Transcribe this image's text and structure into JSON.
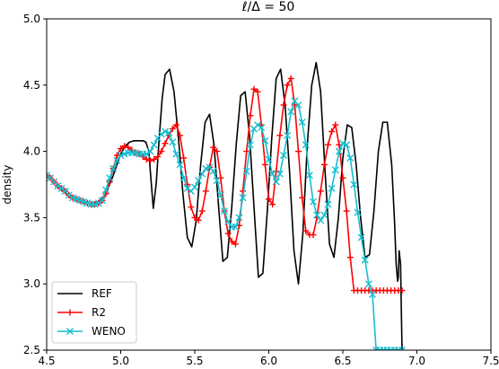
{
  "chart_data": {
    "type": "line",
    "title": "ℓ/Δ = 50",
    "xlabel": "",
    "ylabel": "density",
    "xlim": [
      4.5,
      7.5
    ],
    "ylim": [
      2.5,
      5.0
    ],
    "xticks": [
      "4.5",
      "5.0",
      "5.5",
      "6.0",
      "6.5",
      "7.0",
      "7.5"
    ],
    "yticks": [
      "2.5",
      "3.0",
      "3.5",
      "4.0",
      "4.5",
      "5.0"
    ],
    "grid": false,
    "legend_position": "lower-left",
    "series": [
      {
        "name": "REF",
        "color": "#000000",
        "marker": "none",
        "x": [
          4.5,
          4.55,
          4.6,
          4.65,
          4.7,
          4.75,
          4.8,
          4.85,
          4.9,
          4.95,
          5.0,
          5.03,
          5.06,
          5.09,
          5.12,
          5.15,
          5.17,
          5.19,
          5.2,
          5.22,
          5.24,
          5.26,
          5.28,
          5.3,
          5.33,
          5.36,
          5.39,
          5.42,
          5.45,
          5.48,
          5.51,
          5.54,
          5.57,
          5.6,
          5.63,
          5.66,
          5.69,
          5.72,
          5.75,
          5.78,
          5.81,
          5.84,
          5.87,
          5.9,
          5.93,
          5.96,
          5.99,
          6.02,
          6.05,
          6.08,
          6.11,
          6.14,
          6.17,
          6.2,
          6.23,
          6.26,
          6.29,
          6.32,
          6.35,
          6.38,
          6.41,
          6.44,
          6.47,
          6.5,
          6.53,
          6.56,
          6.59,
          6.62,
          6.65,
          6.68,
          6.71,
          6.74,
          6.77,
          6.8,
          6.83,
          6.85,
          6.86,
          6.87,
          6.875,
          6.88,
          6.89,
          6.895,
          6.9,
          6.9
        ],
        "y": [
          3.82,
          3.77,
          3.71,
          3.67,
          3.63,
          3.61,
          3.6,
          3.62,
          3.68,
          3.82,
          3.98,
          4.04,
          4.07,
          4.08,
          4.08,
          4.08,
          4.07,
          4.0,
          3.85,
          3.57,
          3.76,
          4.1,
          4.4,
          4.58,
          4.62,
          4.45,
          4.1,
          3.68,
          3.35,
          3.28,
          3.48,
          3.9,
          4.22,
          4.28,
          4.05,
          3.6,
          3.17,
          3.2,
          3.58,
          4.05,
          4.42,
          4.45,
          4.12,
          3.58,
          3.05,
          3.08,
          3.55,
          4.1,
          4.55,
          4.62,
          4.35,
          3.85,
          3.25,
          3.0,
          3.38,
          4.05,
          4.5,
          4.67,
          4.45,
          3.85,
          3.3,
          3.2,
          3.5,
          3.95,
          4.2,
          4.18,
          3.9,
          3.5,
          3.2,
          3.22,
          3.55,
          4.0,
          4.22,
          4.22,
          3.9,
          3.45,
          3.15,
          3.02,
          3.05,
          3.25,
          3.15,
          2.8,
          2.5,
          2.5
        ]
      },
      {
        "name": "R2",
        "color": "#ff0000",
        "marker": "+",
        "x": [
          4.5,
          4.525,
          4.55,
          4.575,
          4.6,
          4.625,
          4.65,
          4.675,
          4.7,
          4.725,
          4.75,
          4.775,
          4.8,
          4.825,
          4.85,
          4.875,
          4.9,
          4.925,
          4.95,
          4.975,
          5.0,
          5.025,
          5.05,
          5.075,
          5.1,
          5.125,
          5.15,
          5.175,
          5.2,
          5.225,
          5.25,
          5.275,
          5.3,
          5.325,
          5.35,
          5.375,
          5.4,
          5.425,
          5.45,
          5.475,
          5.5,
          5.525,
          5.55,
          5.575,
          5.6,
          5.625,
          5.65,
          5.675,
          5.7,
          5.725,
          5.75,
          5.775,
          5.8,
          5.825,
          5.85,
          5.875,
          5.9,
          5.925,
          5.95,
          5.975,
          6.0,
          6.025,
          6.05,
          6.075,
          6.1,
          6.125,
          6.15,
          6.175,
          6.2,
          6.225,
          6.25,
          6.275,
          6.3,
          6.325,
          6.35,
          6.375,
          6.4,
          6.425,
          6.45,
          6.475,
          6.5,
          6.525,
          6.55,
          6.575,
          6.6,
          6.625,
          6.65,
          6.675,
          6.7,
          6.725,
          6.75,
          6.775,
          6.8,
          6.825,
          6.85,
          6.875,
          6.9
        ],
        "y": [
          3.82,
          3.8,
          3.77,
          3.74,
          3.72,
          3.7,
          3.67,
          3.65,
          3.64,
          3.63,
          3.62,
          3.61,
          3.6,
          3.6,
          3.61,
          3.63,
          3.68,
          3.77,
          3.87,
          3.97,
          4.02,
          4.04,
          4.03,
          4.01,
          3.99,
          3.98,
          3.96,
          3.94,
          3.93,
          3.94,
          3.96,
          4.0,
          4.06,
          4.12,
          4.17,
          4.2,
          4.12,
          3.95,
          3.75,
          3.58,
          3.5,
          3.48,
          3.55,
          3.7,
          3.88,
          4.03,
          4.0,
          3.8,
          3.55,
          3.38,
          3.32,
          3.3,
          3.44,
          3.7,
          4.0,
          4.27,
          4.47,
          4.45,
          4.2,
          3.9,
          3.64,
          3.6,
          3.85,
          4.12,
          4.35,
          4.5,
          4.55,
          4.35,
          4.0,
          3.65,
          3.4,
          3.37,
          3.37,
          3.5,
          3.7,
          3.9,
          4.05,
          4.15,
          4.2,
          4.05,
          3.8,
          3.55,
          3.2,
          2.95,
          2.95,
          2.95,
          2.95,
          2.95,
          2.95,
          2.95,
          2.95,
          2.95,
          2.95,
          2.95,
          2.95,
          2.95,
          2.95
        ]
      },
      {
        "name": "WENO",
        "color": "#17becf",
        "marker": "x",
        "x": [
          4.5,
          4.525,
          4.55,
          4.575,
          4.6,
          4.625,
          4.65,
          4.675,
          4.7,
          4.725,
          4.75,
          4.775,
          4.8,
          4.825,
          4.85,
          4.875,
          4.9,
          4.925,
          4.95,
          4.975,
          5.0,
          5.025,
          5.05,
          5.075,
          5.1,
          5.125,
          5.15,
          5.175,
          5.2,
          5.225,
          5.25,
          5.275,
          5.3,
          5.325,
          5.35,
          5.375,
          5.4,
          5.425,
          5.45,
          5.475,
          5.5,
          5.525,
          5.55,
          5.575,
          5.6,
          5.625,
          5.65,
          5.675,
          5.7,
          5.725,
          5.75,
          5.775,
          5.8,
          5.825,
          5.85,
          5.875,
          5.9,
          5.925,
          5.95,
          5.975,
          6.0,
          6.025,
          6.05,
          6.075,
          6.1,
          6.125,
          6.15,
          6.175,
          6.2,
          6.225,
          6.25,
          6.275,
          6.3,
          6.325,
          6.35,
          6.375,
          6.4,
          6.425,
          6.45,
          6.475,
          6.5,
          6.525,
          6.55,
          6.575,
          6.6,
          6.625,
          6.65,
          6.675,
          6.7,
          6.725,
          6.75,
          6.775,
          6.8,
          6.825,
          6.85,
          6.875,
          6.9
        ],
        "y": [
          3.82,
          3.8,
          3.77,
          3.74,
          3.72,
          3.7,
          3.67,
          3.65,
          3.64,
          3.63,
          3.62,
          3.61,
          3.6,
          3.6,
          3.61,
          3.63,
          3.71,
          3.8,
          3.87,
          3.93,
          3.97,
          3.98,
          3.99,
          3.99,
          3.99,
          3.98,
          3.98,
          3.98,
          4.0,
          4.05,
          4.1,
          4.13,
          4.15,
          4.14,
          4.07,
          3.98,
          3.9,
          3.8,
          3.72,
          3.7,
          3.73,
          3.78,
          3.83,
          3.87,
          3.88,
          3.85,
          3.78,
          3.67,
          3.55,
          3.47,
          3.43,
          3.43,
          3.5,
          3.65,
          3.85,
          4.05,
          4.17,
          4.2,
          4.18,
          4.08,
          3.94,
          3.83,
          3.77,
          3.83,
          3.97,
          4.12,
          4.3,
          4.38,
          4.35,
          4.22,
          4.05,
          3.82,
          3.62,
          3.52,
          3.48,
          3.52,
          3.6,
          3.72,
          3.86,
          4.0,
          4.06,
          4.05,
          3.95,
          3.75,
          3.54,
          3.35,
          3.18,
          3.0,
          2.92,
          2.5,
          2.5,
          2.5,
          2.5,
          2.5,
          2.5,
          2.5,
          2.5
        ]
      }
    ]
  }
}
